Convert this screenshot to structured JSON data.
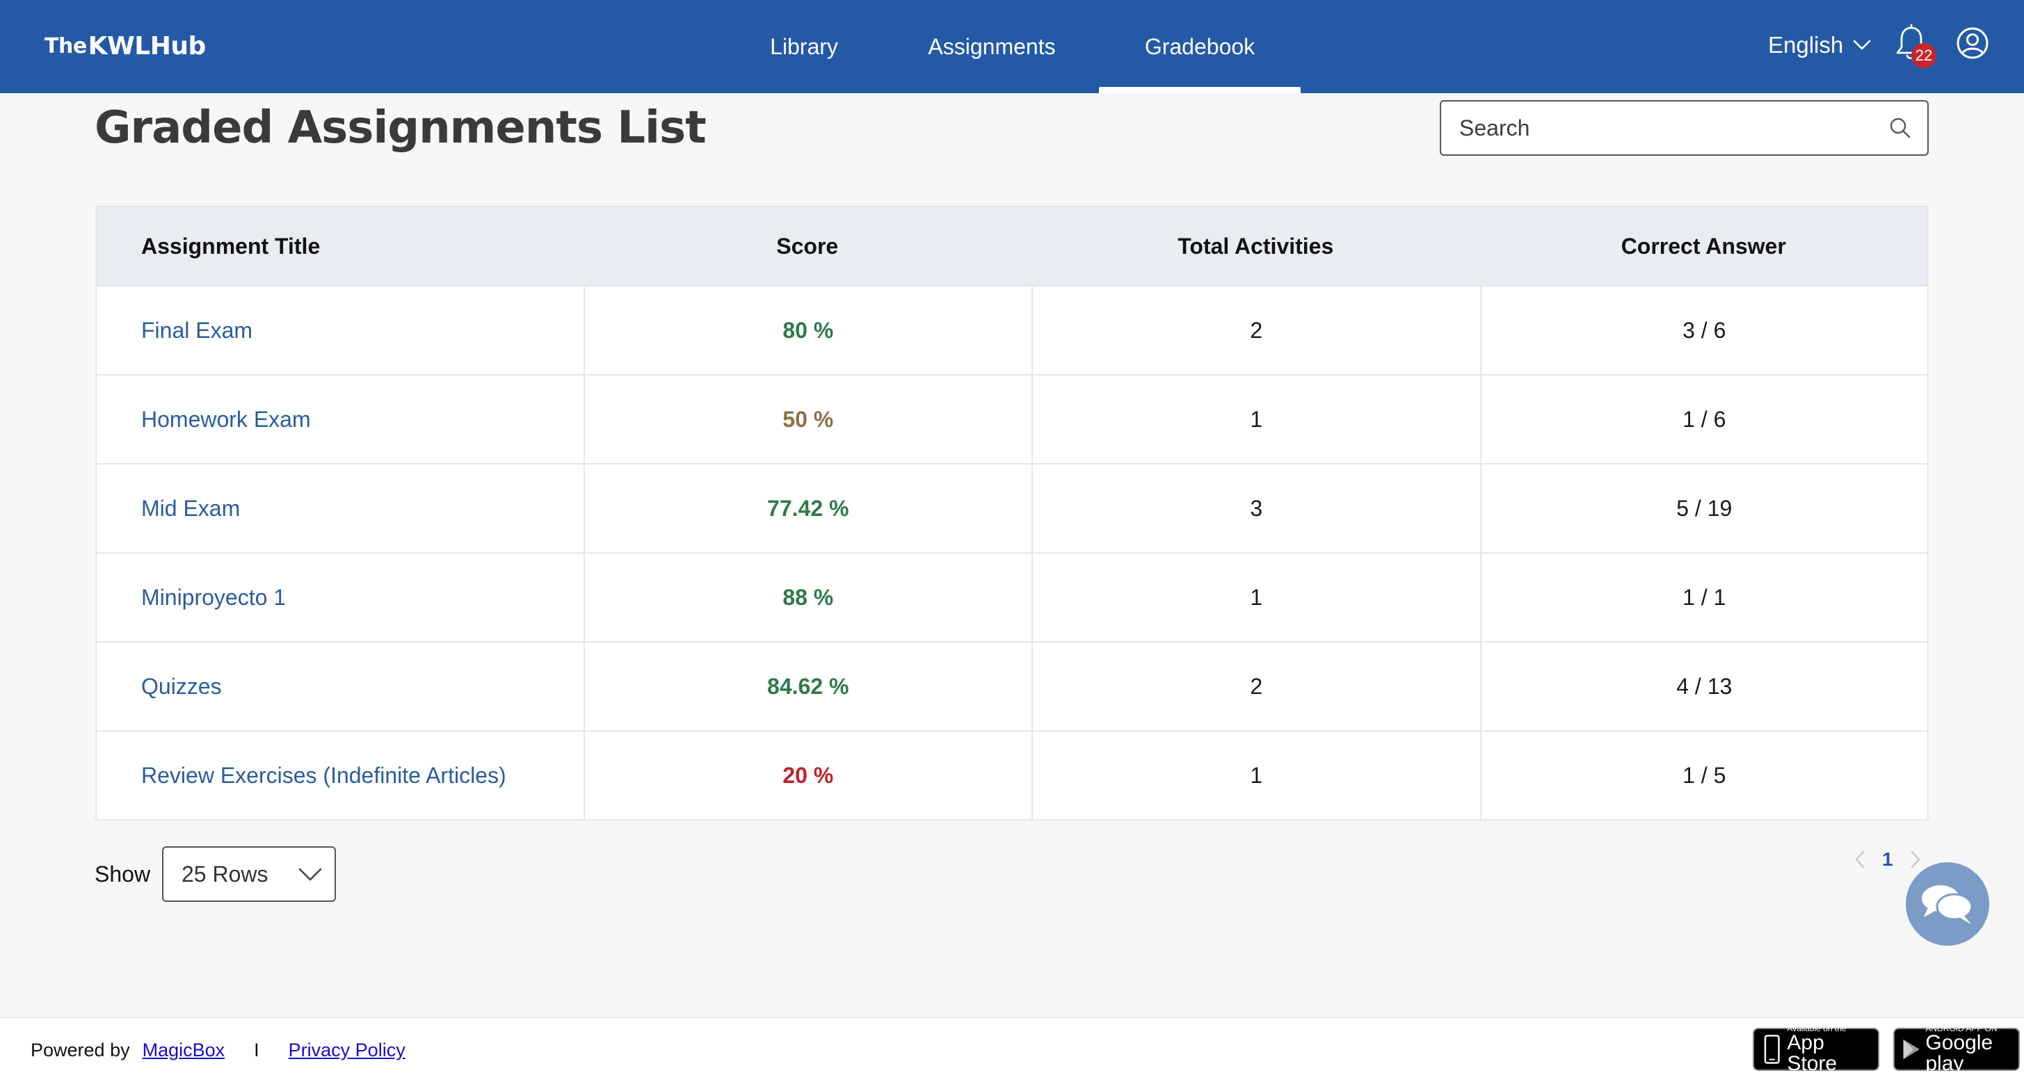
{
  "header": {
    "logo_the": "The",
    "logo_main": "KWLHub",
    "nav": [
      {
        "label": "Library"
      },
      {
        "label": "Assignments"
      },
      {
        "label": "Gradebook",
        "active": true
      }
    ],
    "language": "English",
    "notification_count": "22",
    "icons": {
      "bell": "bell-icon",
      "account": "account-circle-icon",
      "chevron": "chevron-down-icon"
    }
  },
  "page": {
    "title": "Graded Assignments List",
    "search": {
      "placeholder": "Search",
      "value": ""
    }
  },
  "table": {
    "columns": [
      "Assignment Title",
      "Score",
      "Total Activities",
      "Correct Answer"
    ],
    "rows": [
      {
        "title": "Final Exam",
        "score": "80 %",
        "score_color": "#2f7a4a",
        "total": "2",
        "correct": "3 / 6"
      },
      {
        "title": "Homework Exam",
        "score": "50 %",
        "score_color": "#8c7048",
        "total": "1",
        "correct": "1 / 6"
      },
      {
        "title": "Mid Exam",
        "score": "77.42 %",
        "score_color": "#2f7a4a",
        "total": "3",
        "correct": "5 / 19"
      },
      {
        "title": "Miniproyecto 1",
        "score": "88 %",
        "score_color": "#2f7a4a",
        "total": "1",
        "correct": "1 / 1"
      },
      {
        "title": "Quizzes",
        "score": "84.62 %",
        "score_color": "#2f7a4a",
        "total": "2",
        "correct": "4 / 13"
      },
      {
        "title": "Review Exercises (Indefinite Articles)",
        "score": "20 %",
        "score_color": "#c0232a",
        "total": "1",
        "correct": "1 / 5"
      }
    ]
  },
  "pagination": {
    "show_label": "Show",
    "rows_option": "25 Rows",
    "current_page": "1"
  },
  "footer": {
    "powered_by": "Powered by",
    "magicbox": "MagicBox",
    "separator": "I",
    "privacy": "Privacy Policy",
    "app_store_small": "Available on the",
    "app_store_big": "App Store",
    "google_small": "ANDROID APP ON",
    "google_big": "Google play"
  },
  "colors": {
    "header_bg": "#2459a6",
    "link": "#2a5d9c",
    "score_green": "#2f7a4a",
    "score_brown": "#8c7048",
    "score_red": "#c0232a",
    "badge_red": "#c8262b",
    "chat_bubble": "#7b9cc6"
  }
}
